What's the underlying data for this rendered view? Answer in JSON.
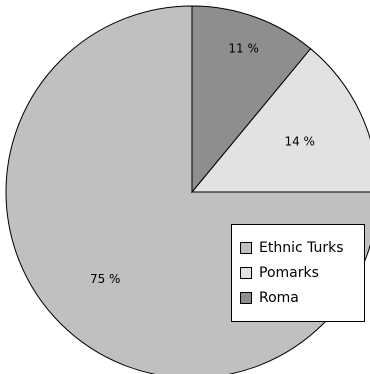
{
  "chart_data": {
    "type": "pie",
    "title": "",
    "slices": [
      {
        "name": "Ethnic Turks",
        "value": 75,
        "label": "75 %",
        "color": "#c0c0c0"
      },
      {
        "name": "Pomarks",
        "value": 14,
        "label": "14 %",
        "color": "#e2e2e2"
      },
      {
        "name": "Roma",
        "value": 11,
        "label": "11 %",
        "color": "#8e8e8e"
      }
    ],
    "start_angle_deg": -90,
    "direction": "counterclockwise",
    "legend": {
      "position": "bottom-right"
    }
  }
}
